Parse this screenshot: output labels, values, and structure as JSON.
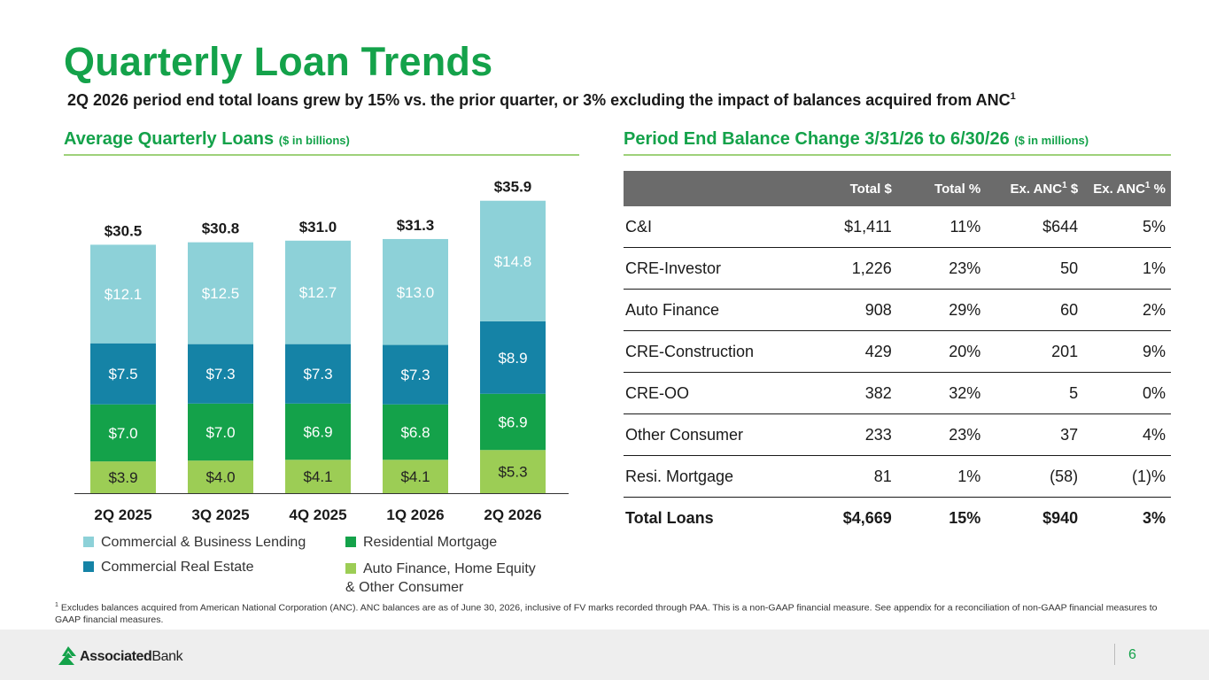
{
  "header": {
    "title": "Quarterly Loan Trends",
    "subtitle": "2Q 2026 period end total loans grew by 15% vs. the prior quarter, or 3% excluding the impact of balances acquired from ANC",
    "subtitle_sup": "1"
  },
  "left_section": {
    "heading": "Average Quarterly Loans",
    "unit": "($ in billions)"
  },
  "right_section": {
    "heading": "Period End Balance Change 3/31/26 to 6/30/26",
    "unit": "($ in millions)"
  },
  "chart_data": {
    "type": "bar",
    "stacked": true,
    "categories": [
      "2Q 2025",
      "3Q 2025",
      "4Q 2025",
      "1Q 2026",
      "2Q 2026"
    ],
    "totals": [
      30.5,
      30.8,
      31.0,
      31.3,
      35.9
    ],
    "total_labels": [
      "$30.5",
      "$30.8",
      "$31.0",
      "$31.3",
      "$35.9"
    ],
    "series": [
      {
        "name": "Auto Finance, Home Equity & Other Consumer",
        "color": "#9ccd55",
        "values": [
          3.9,
          4.0,
          4.1,
          4.1,
          5.3
        ],
        "labels": [
          "$3.9",
          "$4.0",
          "$4.1",
          "$4.1",
          "$5.3"
        ]
      },
      {
        "name": "Residential Mortgage",
        "color": "#14a24a",
        "values": [
          7.0,
          7.0,
          6.9,
          6.8,
          6.9
        ],
        "labels": [
          "$7.0",
          "$7.0",
          "$6.9",
          "$6.8",
          "$6.9"
        ]
      },
      {
        "name": "Commercial Real Estate",
        "color": "#1583a6",
        "values": [
          7.5,
          7.3,
          7.3,
          7.3,
          8.9
        ],
        "labels": [
          "$7.5",
          "$7.3",
          "$7.3",
          "$7.3",
          "$8.9"
        ]
      },
      {
        "name": "Commercial & Business Lending",
        "color": "#8dd1d8",
        "values": [
          12.1,
          12.5,
          12.7,
          13.0,
          14.8
        ],
        "labels": [
          "$12.1",
          "$12.5",
          "$12.7",
          "$13.0",
          "$14.8"
        ]
      }
    ],
    "legend": {
      "left": [
        "Commercial & Business Lending",
        "Commercial Real Estate"
      ],
      "right": [
        "Residential Mortgage",
        "Auto Finance, Home Equity",
        "& Other Consumer"
      ]
    }
  },
  "table": {
    "headers": [
      "",
      "Total $",
      "Total %",
      "Ex. ANC",
      "Ex. ANC"
    ],
    "header_sup": "1",
    "header_suffix": [
      " $",
      " %"
    ],
    "rows": [
      {
        "label": "C&I",
        "total": "$1,411",
        "pct": "11%",
        "ex": "$644",
        "expct": "5%"
      },
      {
        "label": "CRE-Investor",
        "total": "1,226",
        "pct": "23%",
        "ex": "50",
        "expct": "1%"
      },
      {
        "label": "Auto Finance",
        "total": "908",
        "pct": "29%",
        "ex": "60",
        "expct": "2%"
      },
      {
        "label": "CRE-Construction",
        "total": "429",
        "pct": "20%",
        "ex": "201",
        "expct": "9%"
      },
      {
        "label": "CRE-OO",
        "total": "382",
        "pct": "32%",
        "ex": "5",
        "expct": "0%"
      },
      {
        "label": "Other Consumer",
        "total": "233",
        "pct": "23%",
        "ex": "37",
        "expct": "4%"
      },
      {
        "label": "Resi. Mortgage",
        "total": "81",
        "pct": "1%",
        "ex": "(58)",
        "expct": "(1)%"
      }
    ],
    "total_row": {
      "label": "Total Loans",
      "total": "$4,669",
      "pct": "15%",
      "ex": "$940",
      "expct": "3%"
    }
  },
  "footnote": {
    "sup": "1",
    "text": "Excludes balances acquired from American National Corporation (ANC). ANC balances are as of June 30, 2026, inclusive of FV marks recorded through PAA. This is a non-GAAP financial measure. See appendix for a reconciliation of non-GAAP financial measures to GAAP financial measures."
  },
  "footer": {
    "logo_bold": "Associated",
    "logo_regular": "Bank",
    "page_number": "6",
    "brand_color": "#14a24a"
  }
}
